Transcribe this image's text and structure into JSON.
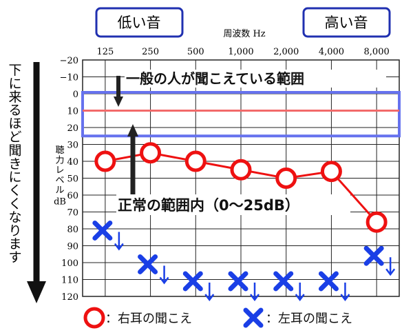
{
  "header": {
    "low_label": "低い音",
    "high_label": "高い音",
    "x_axis_title": "周波数 Hz"
  },
  "y_axis_title_lines": [
    "聴",
    "力レベル",
    "dB"
  ],
  "side_label": "下に来るほど聞きにくくなります",
  "annotations": {
    "normal_people": "一般の人が聞こえている範囲",
    "normal_range": "正常の範囲内（0〜25dB）"
  },
  "legend": {
    "right_label": "：右耳の聞こえ",
    "left_label": "：左耳の聞こえ"
  },
  "colors": {
    "right_ear": "#ee1111",
    "left_ear": "#1a3fe6",
    "normal_band_border": "#6672ee",
    "normal_band_line": "#f26a6a",
    "header_box_border": "#2030b0",
    "grid": "#222222"
  },
  "chart_data": {
    "type": "line",
    "x_axis_label": "周波数 Hz",
    "y_axis_label": "聴力レベル dB",
    "categories": [
      "125",
      "250",
      "500",
      "1,000",
      "2,000",
      "4,000",
      "8,000"
    ],
    "y_ticks": [
      "−20",
      "−10",
      "0",
      "10",
      "20",
      "30",
      "40",
      "50",
      "60",
      "70",
      "80",
      "90",
      "100",
      "110",
      "120"
    ],
    "y_range": [
      -20,
      120
    ],
    "y_inverted": true,
    "normal_range": [
      0,
      25
    ],
    "normal_line": 10,
    "series": [
      {
        "name": "右耳の聞こえ",
        "marker": "circle",
        "connected": true,
        "values": [
          40,
          35,
          40,
          45,
          50,
          46,
          76
        ]
      },
      {
        "name": "左耳の聞こえ",
        "marker": "cross-with-down-arrow",
        "connected": false,
        "values": [
          81,
          101,
          111,
          111,
          111,
          111,
          96
        ]
      }
    ]
  }
}
